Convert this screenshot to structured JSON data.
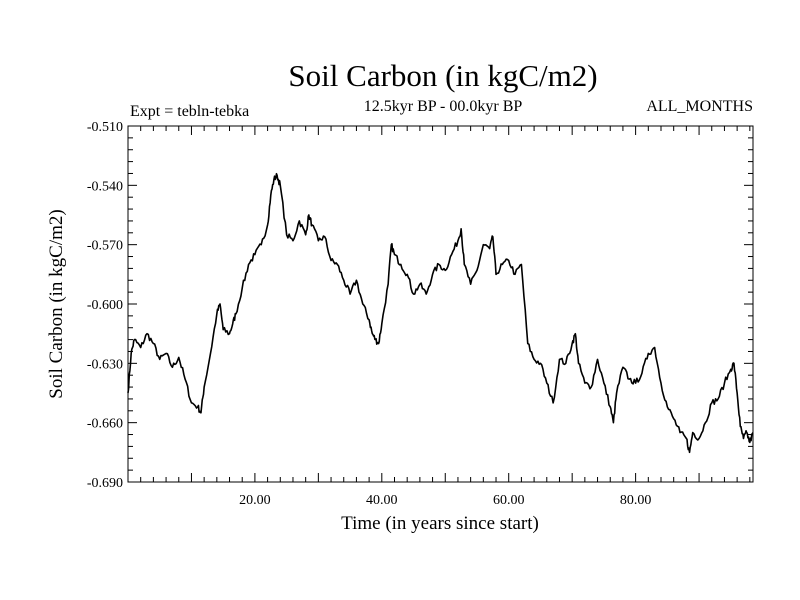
{
  "chart_data": {
    "type": "line",
    "title": "Soil Carbon (in kgC/m2)",
    "subtitle": "12.5kyr BP - 00.0kyr BP",
    "left_note": "Expt = tebln-tebka",
    "right_note": "ALL_MONTHS",
    "xlabel": "Time (in years since start)",
    "ylabel": "Soil Carbon (in kgC/m2)",
    "xlim": [
      0,
      98.5
    ],
    "ylim": [
      -0.69,
      -0.51
    ],
    "x_ticks": [
      20,
      40,
      60,
      80
    ],
    "x_tick_labels": [
      "20.00",
      "40.00",
      "60.00",
      "80.00"
    ],
    "y_ticks": [
      -0.51,
      -0.54,
      -0.57,
      -0.6,
      -0.63,
      -0.66,
      -0.69
    ],
    "y_tick_labels": [
      "-0.510",
      "-0.540",
      "-0.570",
      "-0.600",
      "-0.630",
      "-0.660",
      "-0.690"
    ],
    "grid": false,
    "series": [
      {
        "color": "#000000",
        "points": [
          [
            0.0,
            -0.645
          ],
          [
            0.5,
            -0.625
          ],
          [
            1.0,
            -0.618
          ],
          [
            2.0,
            -0.622
          ],
          [
            3.0,
            -0.615
          ],
          [
            4.0,
            -0.62
          ],
          [
            5.0,
            -0.628
          ],
          [
            6.0,
            -0.625
          ],
          [
            7.0,
            -0.632
          ],
          [
            8.0,
            -0.627
          ],
          [
            9.0,
            -0.638
          ],
          [
            10.0,
            -0.65
          ],
          [
            11.0,
            -0.652
          ],
          [
            11.5,
            -0.655
          ],
          [
            12.0,
            -0.642
          ],
          [
            13.0,
            -0.625
          ],
          [
            14.0,
            -0.605
          ],
          [
            14.5,
            -0.6
          ],
          [
            15.0,
            -0.613
          ],
          [
            16.0,
            -0.615
          ],
          [
            16.5,
            -0.61
          ],
          [
            17.0,
            -0.605
          ],
          [
            18.0,
            -0.592
          ],
          [
            19.0,
            -0.58
          ],
          [
            20.0,
            -0.575
          ],
          [
            21.0,
            -0.57
          ],
          [
            22.0,
            -0.56
          ],
          [
            22.5,
            -0.545
          ],
          [
            23.0,
            -0.537
          ],
          [
            23.5,
            -0.535
          ],
          [
            24.0,
            -0.54
          ],
          [
            25.0,
            -0.565
          ],
          [
            26.0,
            -0.568
          ],
          [
            27.0,
            -0.558
          ],
          [
            28.0,
            -0.565
          ],
          [
            28.5,
            -0.555
          ],
          [
            29.0,
            -0.56
          ],
          [
            30.0,
            -0.568
          ],
          [
            31.0,
            -0.566
          ],
          [
            32.0,
            -0.578
          ],
          [
            33.0,
            -0.58
          ],
          [
            34.0,
            -0.588
          ],
          [
            35.0,
            -0.595
          ],
          [
            36.0,
            -0.588
          ],
          [
            37.0,
            -0.6
          ],
          [
            38.0,
            -0.608
          ],
          [
            38.5,
            -0.615
          ],
          [
            39.0,
            -0.618
          ],
          [
            39.5,
            -0.62
          ],
          [
            40.0,
            -0.61
          ],
          [
            41.0,
            -0.59
          ],
          [
            41.5,
            -0.57
          ],
          [
            42.0,
            -0.575
          ],
          [
            43.0,
            -0.58
          ],
          [
            44.0,
            -0.585
          ],
          [
            45.0,
            -0.595
          ],
          [
            46.0,
            -0.59
          ],
          [
            47.0,
            -0.595
          ],
          [
            48.0,
            -0.585
          ],
          [
            49.0,
            -0.58
          ],
          [
            50.0,
            -0.583
          ],
          [
            51.0,
            -0.575
          ],
          [
            52.0,
            -0.568
          ],
          [
            52.5,
            -0.562
          ],
          [
            53.0,
            -0.58
          ],
          [
            54.0,
            -0.59
          ],
          [
            55.0,
            -0.583
          ],
          [
            56.0,
            -0.57
          ],
          [
            57.0,
            -0.572
          ],
          [
            57.5,
            -0.566
          ],
          [
            58.0,
            -0.585
          ],
          [
            59.0,
            -0.58
          ],
          [
            60.0,
            -0.578
          ],
          [
            61.0,
            -0.585
          ],
          [
            62.0,
            -0.58
          ],
          [
            63.0,
            -0.62
          ],
          [
            64.0,
            -0.628
          ],
          [
            65.0,
            -0.63
          ],
          [
            66.0,
            -0.64
          ],
          [
            67.0,
            -0.65
          ],
          [
            68.0,
            -0.628
          ],
          [
            69.0,
            -0.63
          ],
          [
            70.0,
            -0.62
          ],
          [
            70.5,
            -0.615
          ],
          [
            71.0,
            -0.63
          ],
          [
            72.0,
            -0.64
          ],
          [
            73.0,
            -0.642
          ],
          [
            74.0,
            -0.628
          ],
          [
            75.0,
            -0.64
          ],
          [
            76.0,
            -0.652
          ],
          [
            76.5,
            -0.66
          ],
          [
            77.0,
            -0.645
          ],
          [
            78.0,
            -0.632
          ],
          [
            79.0,
            -0.638
          ],
          [
            80.0,
            -0.64
          ],
          [
            81.0,
            -0.635
          ],
          [
            82.0,
            -0.625
          ],
          [
            83.0,
            -0.622
          ],
          [
            84.0,
            -0.64
          ],
          [
            85.0,
            -0.652
          ],
          [
            86.0,
            -0.658
          ],
          [
            87.0,
            -0.665
          ],
          [
            88.0,
            -0.668
          ],
          [
            88.5,
            -0.675
          ],
          [
            89.0,
            -0.665
          ],
          [
            90.0,
            -0.668
          ],
          [
            91.0,
            -0.66
          ],
          [
            92.0,
            -0.65
          ],
          [
            93.0,
            -0.648
          ],
          [
            94.0,
            -0.64
          ],
          [
            95.0,
            -0.633
          ],
          [
            95.5,
            -0.63
          ],
          [
            96.0,
            -0.645
          ],
          [
            96.5,
            -0.662
          ],
          [
            97.0,
            -0.668
          ],
          [
            97.5,
            -0.665
          ],
          [
            98.0,
            -0.67
          ],
          [
            98.5,
            -0.665
          ]
        ]
      }
    ]
  }
}
